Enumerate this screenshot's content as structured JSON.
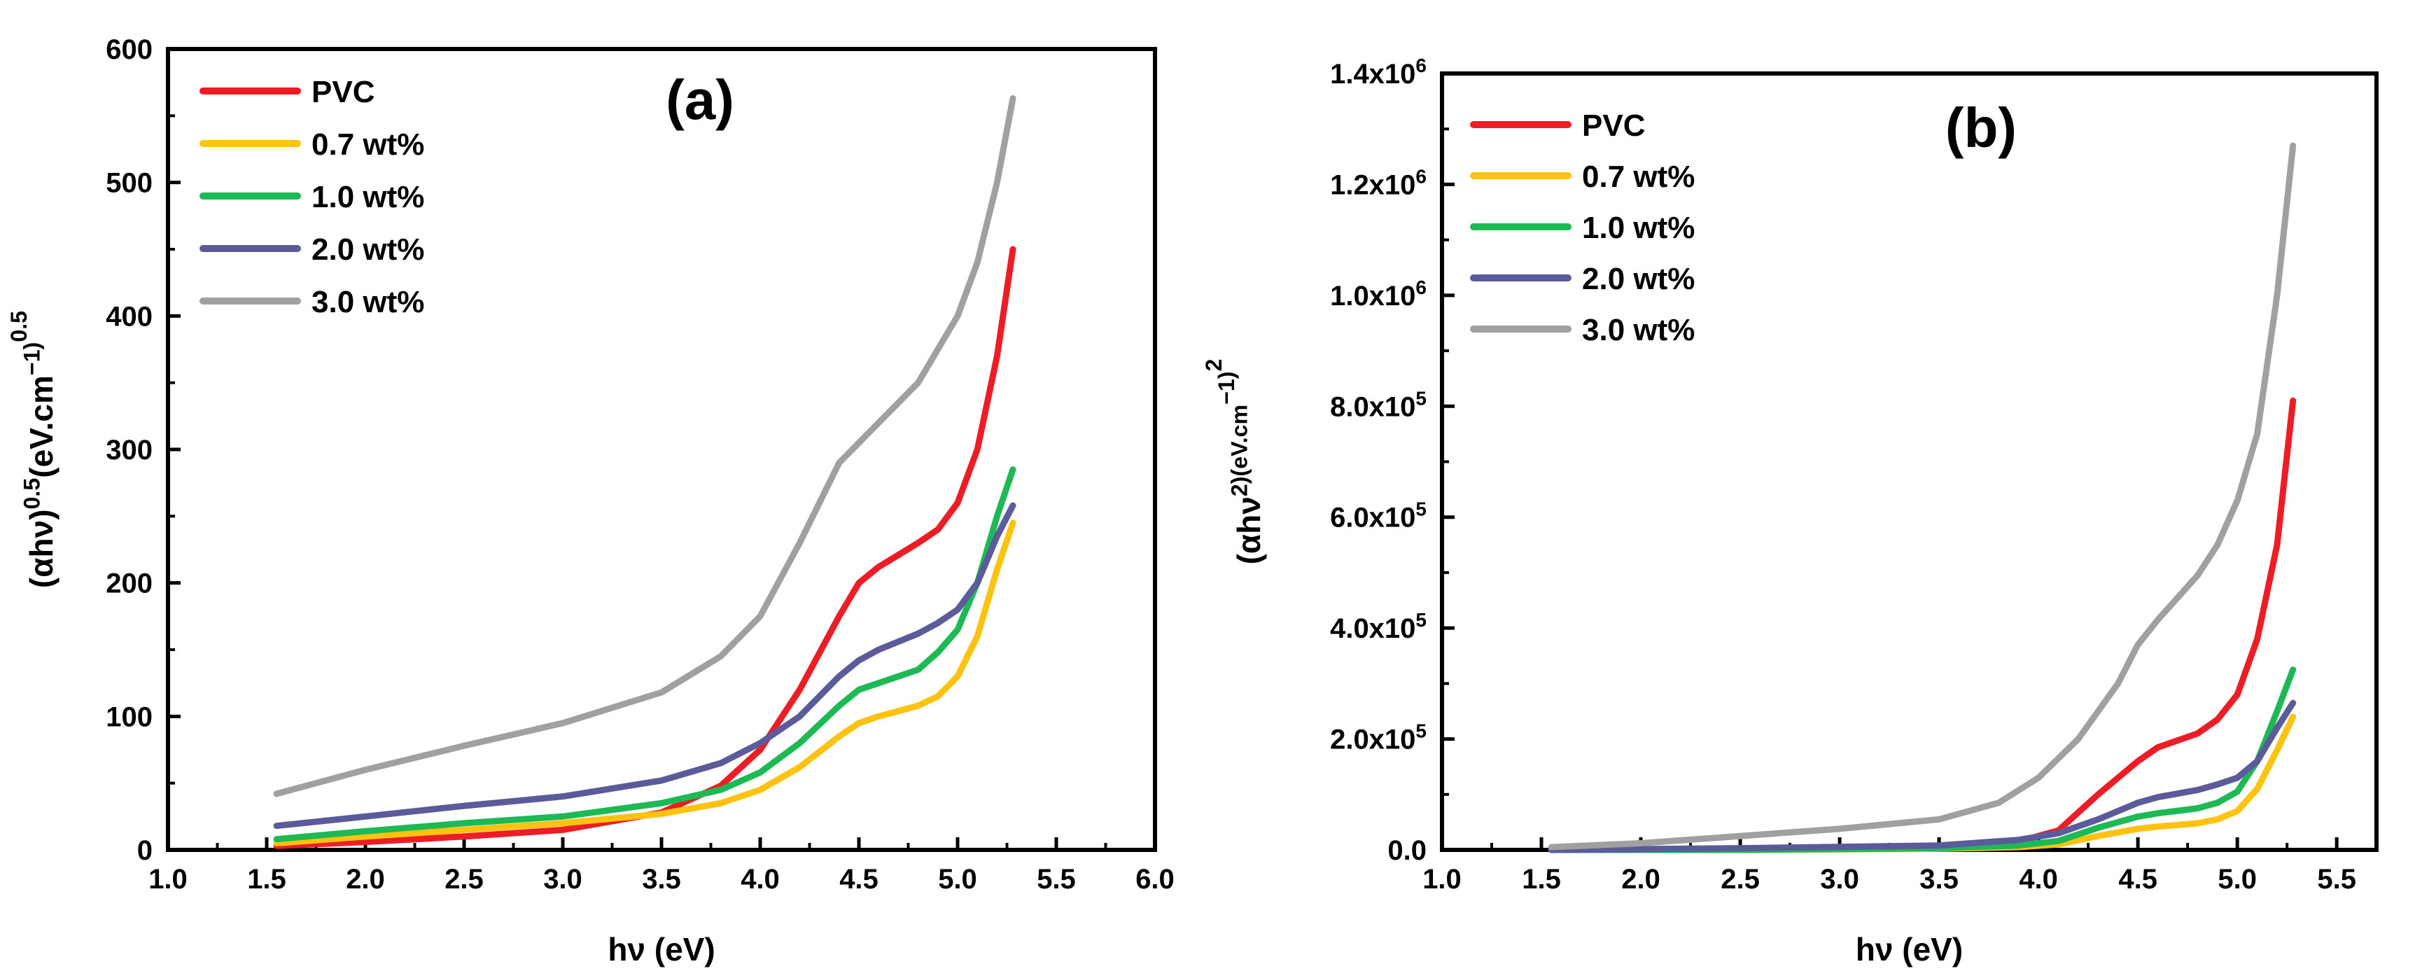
{
  "chart_data": [
    {
      "type": "line",
      "panel_label": "(a)",
      "xlabel": "hν (eV)",
      "ylabel": "(αhν)^0.5(eV.cm^−1)^0.5",
      "xlim": [
        1.0,
        6.0
      ],
      "ylim": [
        0,
        600
      ],
      "xticks": [
        "1.0",
        "1.5",
        "2.0",
        "2.5",
        "3.0",
        "3.5",
        "4.0",
        "4.5",
        "5.0",
        "5.5",
        "6.0"
      ],
      "yticks": [
        "0",
        "100",
        "200",
        "300",
        "400",
        "500",
        "600"
      ],
      "legend_position": "top-left",
      "grid": false,
      "series": [
        {
          "name": "PVC",
          "color": "#ee1c25",
          "x": [
            1.55,
            2.0,
            2.5,
            3.0,
            3.5,
            3.8,
            4.0,
            4.2,
            4.4,
            4.5,
            4.6,
            4.8,
            4.9,
            5.0,
            5.1,
            5.2,
            5.28
          ],
          "y": [
            3,
            6,
            10,
            15,
            28,
            48,
            75,
            120,
            175,
            200,
            212,
            230,
            240,
            260,
            300,
            370,
            450
          ]
        },
        {
          "name": "0.7 wt%",
          "color": "#ffc20e",
          "x": [
            1.55,
            2.0,
            2.5,
            3.0,
            3.5,
            3.8,
            4.0,
            4.2,
            4.4,
            4.5,
            4.6,
            4.8,
            4.9,
            5.0,
            5.1,
            5.2,
            5.28
          ],
          "y": [
            5,
            10,
            15,
            20,
            27,
            35,
            45,
            62,
            85,
            95,
            100,
            108,
            115,
            130,
            160,
            210,
            245
          ]
        },
        {
          "name": "1.0 wt%",
          "color": "#1db954",
          "x": [
            1.55,
            2.0,
            2.5,
            3.0,
            3.5,
            3.8,
            4.0,
            4.2,
            4.4,
            4.5,
            4.6,
            4.8,
            4.9,
            5.0,
            5.1,
            5.2,
            5.28
          ],
          "y": [
            8,
            14,
            20,
            25,
            35,
            45,
            58,
            80,
            108,
            120,
            125,
            135,
            148,
            165,
            200,
            250,
            285
          ]
        },
        {
          "name": "2.0 wt%",
          "color": "#5b5a9a",
          "x": [
            1.55,
            2.0,
            2.5,
            3.0,
            3.5,
            3.8,
            4.0,
            4.2,
            4.4,
            4.5,
            4.6,
            4.8,
            4.9,
            5.0,
            5.1,
            5.2,
            5.28
          ],
          "y": [
            18,
            25,
            33,
            40,
            52,
            65,
            80,
            100,
            130,
            142,
            150,
            162,
            170,
            180,
            200,
            235,
            258
          ]
        },
        {
          "name": "3.0 wt%",
          "color": "#a0a0a0",
          "x": [
            1.55,
            2.0,
            2.5,
            3.0,
            3.5,
            3.8,
            4.0,
            4.2,
            4.4,
            4.5,
            4.6,
            4.8,
            4.9,
            5.0,
            5.1,
            5.2,
            5.28
          ],
          "y": [
            42,
            60,
            78,
            95,
            118,
            145,
            175,
            230,
            290,
            305,
            320,
            350,
            375,
            400,
            440,
            500,
            563
          ]
        }
      ]
    },
    {
      "type": "line",
      "panel_label": "(b)",
      "xlabel": "hν (eV)",
      "ylabel": "(αhν^2)(eV.cm^−1)^2",
      "xlim": [
        1.0,
        5.7
      ],
      "ylim": [
        0,
        1400000
      ],
      "xticks": [
        "1.0",
        "1.5",
        "2.0",
        "2.5",
        "3.0",
        "3.5",
        "4.0",
        "4.5",
        "5.0",
        "5.5"
      ],
      "yticks": [
        "0.0",
        "2.0x10^5",
        "4.0x10^5",
        "6.0x10^5",
        "8.0x10^5",
        "1.0x10^6",
        "1.2x10^6",
        "1.4x10^6"
      ],
      "legend_position": "top-left",
      "grid": false,
      "series": [
        {
          "name": "PVC",
          "color": "#ee1c25",
          "x": [
            1.55,
            2.5,
            3.5,
            3.9,
            4.1,
            4.3,
            4.5,
            4.6,
            4.8,
            4.9,
            5.0,
            5.1,
            5.2,
            5.28
          ],
          "y": [
            0,
            0,
            5000,
            15000,
            35000,
            100000,
            160000,
            185000,
            210000,
            235000,
            280000,
            380000,
            550000,
            810000
          ]
        },
        {
          "name": "0.7 wt%",
          "color": "#ffc20e",
          "x": [
            1.55,
            2.5,
            3.5,
            3.9,
            4.1,
            4.3,
            4.5,
            4.6,
            4.8,
            4.9,
            5.0,
            5.1,
            5.2,
            5.28
          ],
          "y": [
            0,
            0,
            2000,
            5000,
            10000,
            25000,
            38000,
            42000,
            48000,
            55000,
            70000,
            110000,
            180000,
            240000
          ]
        },
        {
          "name": "1.0 wt%",
          "color": "#1db954",
          "x": [
            1.55,
            2.5,
            3.5,
            3.9,
            4.1,
            4.3,
            4.5,
            4.6,
            4.8,
            4.9,
            5.0,
            5.1,
            5.2,
            5.28
          ],
          "y": [
            0,
            0,
            3000,
            8000,
            16000,
            40000,
            60000,
            66000,
            75000,
            85000,
            105000,
            160000,
            250000,
            325000
          ]
        },
        {
          "name": "2.0 wt%",
          "color": "#5b5a9a",
          "x": [
            1.55,
            2.5,
            3.5,
            3.9,
            4.1,
            4.3,
            4.5,
            4.6,
            4.8,
            4.9,
            5.0,
            5.1,
            5.2,
            5.28
          ],
          "y": [
            0,
            3000,
            8000,
            18000,
            30000,
            55000,
            85000,
            95000,
            108000,
            118000,
            130000,
            160000,
            220000,
            265000
          ]
        },
        {
          "name": "3.0 wt%",
          "color": "#a0a0a0",
          "x": [
            1.55,
            2.0,
            2.5,
            3.0,
            3.5,
            3.8,
            4.0,
            4.2,
            4.4,
            4.5,
            4.6,
            4.7,
            4.8,
            4.9,
            5.0,
            5.1,
            5.2,
            5.28
          ],
          "y": [
            5000,
            12000,
            25000,
            38000,
            55000,
            85000,
            130000,
            200000,
            300000,
            370000,
            415000,
            455000,
            495000,
            550000,
            630000,
            750000,
            1000000,
            1270000
          ]
        }
      ]
    }
  ]
}
